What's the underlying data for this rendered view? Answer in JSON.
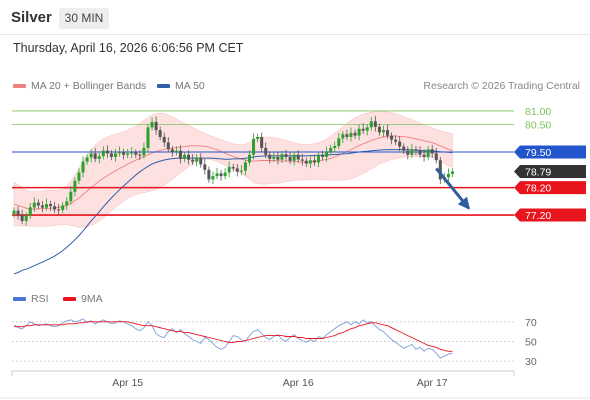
{
  "header": {
    "symbol": "Silver",
    "timeframe": "30 MIN",
    "datetime": "Thursday, April 16, 2026 6:06:56 PM CET",
    "copyright": "Research © 2026 Trading Central"
  },
  "legend": {
    "ma20_label": "MA 20 + Bollinger Bands",
    "ma50_label": "MA 50",
    "rsi_label": "RSI",
    "rsi_ma_label": "9MA"
  },
  "colors": {
    "bb_fill": "#fde1e1",
    "ma20": "#f08080",
    "ma50": "#2e5fa8",
    "bull": "#2ca02c",
    "bear": "#555555",
    "resistance_green": "#7cc35a",
    "pivot_blue": "#2255cc",
    "support_red": "#e8141e",
    "current_price_bg": "#333333",
    "arrow": "#2f5c9e",
    "rsi_line": "#7b9fd9",
    "rsi_ma": "#e8141e"
  },
  "chart_data": [
    {
      "type": "candlestick",
      "title": "Silver 30 MIN",
      "ylim": [
        74.9,
        81.4
      ],
      "x_tick_labels": [
        {
          "label": "Apr 15",
          "bar": 28
        },
        {
          "label": "Apr 16",
          "bar": 70
        },
        {
          "label": "Apr 17",
          "bar": 103
        }
      ],
      "levels": [
        {
          "value": 81.0,
          "label": "81.00",
          "kind": "resistance"
        },
        {
          "value": 80.5,
          "label": "80.50",
          "kind": "resistance"
        },
        {
          "value": 79.5,
          "label": "79.50",
          "kind": "pivot"
        },
        {
          "value": 78.79,
          "label": "78.79",
          "kind": "last"
        },
        {
          "value": 78.2,
          "label": "78.20",
          "kind": "support"
        },
        {
          "value": 77.2,
          "label": "77.20",
          "kind": "target"
        }
      ],
      "arrow": {
        "from_bar": 104,
        "from_value": 78.9,
        "to_bar": 112,
        "to_value": 77.45
      },
      "close": [
        77.36,
        77.2,
        76.98,
        77.18,
        77.48,
        77.65,
        77.55,
        77.47,
        77.6,
        77.52,
        77.4,
        77.38,
        77.55,
        77.7,
        78.05,
        78.45,
        78.75,
        79.15,
        79.3,
        79.45,
        79.25,
        79.35,
        79.55,
        79.45,
        79.32,
        79.45,
        79.5,
        79.4,
        79.45,
        79.48,
        79.4,
        79.38,
        79.65,
        80.4,
        80.6,
        80.3,
        80.05,
        79.85,
        79.6,
        79.5,
        79.55,
        79.25,
        79.4,
        79.22,
        79.15,
        79.3,
        79.05,
        78.85,
        78.5,
        78.62,
        78.72,
        78.62,
        78.75,
        78.95,
        78.9,
        78.78,
        78.82,
        79.12,
        79.4,
        79.98,
        80.05,
        79.65,
        79.4,
        79.25,
        79.32,
        79.22,
        79.42,
        79.32,
        79.18,
        79.4,
        79.23,
        79.18,
        79.08,
        79.2,
        79.12,
        79.38,
        79.32,
        79.5,
        79.65,
        79.72,
        80.0,
        80.15,
        80.05,
        80.2,
        80.1,
        80.35,
        80.28,
        80.4,
        80.62,
        80.42,
        80.22,
        80.3,
        80.1,
        79.95,
        79.88,
        79.7,
        79.55,
        79.4,
        79.6,
        79.55,
        79.4,
        79.32,
        79.6,
        79.45,
        79.2,
        78.5,
        78.58,
        78.7,
        78.79
      ],
      "series": [
        {
          "name": "MA 50",
          "values": [
            75.05,
            75.1,
            75.18,
            75.22,
            75.28,
            75.35,
            75.42,
            75.48,
            75.55,
            75.62,
            75.7,
            75.8,
            75.9,
            76.02,
            76.15,
            76.3,
            76.45,
            76.62,
            76.8,
            76.98,
            77.15,
            77.32,
            77.5,
            77.66,
            77.82,
            77.98,
            78.12,
            78.26,
            78.4,
            78.53,
            78.66,
            78.78,
            78.88,
            78.98,
            79.06,
            79.12,
            79.17,
            79.21,
            79.24,
            79.26,
            79.27,
            79.28,
            79.28,
            79.28,
            79.28,
            79.28,
            79.28,
            79.28,
            79.28,
            79.27,
            79.26,
            79.25,
            79.24,
            79.24,
            79.25,
            79.25,
            79.26,
            79.27,
            79.29,
            79.32,
            79.34,
            79.35,
            79.36,
            79.36,
            79.36,
            79.36,
            79.36,
            79.36,
            79.36,
            79.36,
            79.36,
            79.36,
            79.36,
            79.37,
            79.37,
            79.38,
            79.38,
            79.39,
            79.4,
            79.41,
            79.42,
            79.43,
            79.44,
            79.46,
            79.48,
            79.5,
            79.52,
            79.53,
            79.55,
            79.56,
            79.57,
            79.58,
            79.58,
            79.59,
            79.59,
            79.59,
            79.59,
            79.58,
            79.58,
            79.57,
            79.56,
            79.55,
            79.55,
            79.54,
            79.53,
            79.51,
            79.5,
            79.49,
            79.48
          ]
        },
        {
          "name": "MA 20",
          "values": [
            77.6,
            77.55,
            77.5,
            77.45,
            77.42,
            77.42,
            77.42,
            77.43,
            77.44,
            77.45,
            77.46,
            77.47,
            77.5,
            77.55,
            77.62,
            77.72,
            77.82,
            77.95,
            78.07,
            78.2,
            78.32,
            78.43,
            78.54,
            78.64,
            78.73,
            78.82,
            78.9,
            78.98,
            79.06,
            79.13,
            79.2,
            79.27,
            79.33,
            79.4,
            79.47,
            79.52,
            79.56,
            79.6,
            79.62,
            79.64,
            79.66,
            79.68,
            79.7,
            79.72,
            79.73,
            79.73,
            79.72,
            79.71,
            79.68,
            79.63,
            79.58,
            79.52,
            79.46,
            79.4,
            79.34,
            79.29,
            79.24,
            79.2,
            79.18,
            79.17,
            79.18,
            79.19,
            79.19,
            79.19,
            79.19,
            79.18,
            79.17,
            79.17,
            79.16,
            79.15,
            79.14,
            79.13,
            79.13,
            79.14,
            79.15,
            79.17,
            79.2,
            79.23,
            79.27,
            79.32,
            79.38,
            79.45,
            79.52,
            79.59,
            79.66,
            79.73,
            79.8,
            79.86,
            79.92,
            79.97,
            80.02,
            80.05,
            80.07,
            80.08,
            80.08,
            80.07,
            80.06,
            80.04,
            80.01,
            79.98,
            79.95,
            79.91,
            79.88,
            79.84,
            79.79,
            79.72,
            79.66,
            79.6,
            79.55
          ]
        },
        {
          "name": "Bollinger Upper",
          "values": [
            78.4,
            78.3,
            78.2,
            78.1,
            78.05,
            78.05,
            78.05,
            78.08,
            78.1,
            78.1,
            78.1,
            78.1,
            78.15,
            78.25,
            78.42,
            78.65,
            78.9,
            79.15,
            79.38,
            79.58,
            79.75,
            79.88,
            79.98,
            80.05,
            80.1,
            80.15,
            80.2,
            80.25,
            80.3,
            80.38,
            80.45,
            80.55,
            80.65,
            80.75,
            80.85,
            80.9,
            80.92,
            80.9,
            80.85,
            80.78,
            80.7,
            80.62,
            80.55,
            80.48,
            80.4,
            80.32,
            80.25,
            80.18,
            80.12,
            80.06,
            80.0,
            79.95,
            79.9,
            79.85,
            79.8,
            79.78,
            79.76,
            79.78,
            79.85,
            79.95,
            80.02,
            80.05,
            80.05,
            80.04,
            80.02,
            80.0,
            79.96,
            79.92,
            79.88,
            79.84,
            79.8,
            79.78,
            79.77,
            79.78,
            79.8,
            79.84,
            79.9,
            79.98,
            80.07,
            80.18,
            80.3,
            80.42,
            80.55,
            80.66,
            80.75,
            80.82,
            80.88,
            80.92,
            80.95,
            80.97,
            80.98,
            80.98,
            80.96,
            80.94,
            80.9,
            80.85,
            80.8,
            80.74,
            80.68,
            80.62,
            80.56,
            80.5,
            80.44,
            80.38,
            80.32,
            80.28,
            80.24,
            80.2,
            80.16
          ]
        },
        {
          "name": "Bollinger Lower",
          "values": [
            76.8,
            76.8,
            76.8,
            76.8,
            76.79,
            76.79,
            76.79,
            76.78,
            76.78,
            76.8,
            76.82,
            76.84,
            76.85,
            76.85,
            76.82,
            76.79,
            76.74,
            76.75,
            76.76,
            76.82,
            76.89,
            76.98,
            77.1,
            77.23,
            77.36,
            77.49,
            77.6,
            77.71,
            77.82,
            77.88,
            77.95,
            77.99,
            78.01,
            78.05,
            78.09,
            78.14,
            78.2,
            78.3,
            78.39,
            78.5,
            78.62,
            78.74,
            78.85,
            78.96,
            79.06,
            79.14,
            79.19,
            79.24,
            79.24,
            79.2,
            79.16,
            79.09,
            79.02,
            78.95,
            78.88,
            78.8,
            78.72,
            78.62,
            78.51,
            78.39,
            78.34,
            78.33,
            78.33,
            78.34,
            78.36,
            78.36,
            78.38,
            78.42,
            78.44,
            78.46,
            78.48,
            78.48,
            78.49,
            78.5,
            78.5,
            78.5,
            78.5,
            78.48,
            78.47,
            78.46,
            78.46,
            78.48,
            78.49,
            78.52,
            78.57,
            78.64,
            78.72,
            78.8,
            78.89,
            78.97,
            79.06,
            79.12,
            79.18,
            79.22,
            79.26,
            79.29,
            79.32,
            79.34,
            79.34,
            79.34,
            79.34,
            79.32,
            79.32,
            79.3,
            79.26,
            79.16,
            79.08,
            79.0,
            78.94
          ]
        }
      ]
    },
    {
      "type": "line",
      "title": "RSI",
      "ylim": [
        25,
        80
      ],
      "yticks": [
        30,
        50,
        70
      ],
      "series": [
        {
          "name": "RSI",
          "values": [
            67,
            64,
            63,
            66,
            70,
            68,
            66,
            67,
            68,
            66,
            65,
            66,
            69,
            71,
            72,
            70,
            71,
            73,
            69,
            71,
            68,
            70,
            72,
            70,
            68,
            69,
            71,
            70,
            68,
            66,
            63,
            61,
            64,
            70,
            66,
            58,
            55,
            54,
            60,
            63,
            59,
            62,
            58,
            55,
            52,
            50,
            48,
            54,
            52,
            48,
            44,
            42,
            44,
            50,
            56,
            55,
            52,
            50,
            56,
            60,
            62,
            58,
            54,
            52,
            55,
            57,
            52,
            50,
            54,
            57,
            53,
            51,
            49,
            52,
            50,
            55,
            53,
            57,
            60,
            63,
            66,
            68,
            70,
            67,
            70,
            68,
            72,
            69,
            70,
            66,
            62,
            60,
            56,
            52,
            49,
            46,
            43,
            45,
            47,
            42,
            44,
            40,
            43,
            42,
            38,
            33,
            35,
            37,
            38
          ]
        },
        {
          "name": "9MA",
          "values": [
            65,
            65,
            65,
            66,
            66,
            67,
            67,
            67,
            67,
            67,
            67,
            67,
            67,
            68,
            68,
            68,
            69,
            69,
            70,
            70,
            70,
            70,
            70,
            70,
            70,
            70,
            70,
            70,
            70,
            69,
            68,
            67,
            66,
            66,
            66,
            65,
            64,
            63,
            62,
            61,
            60,
            60,
            59,
            59,
            58,
            57,
            56,
            55,
            54,
            53,
            52,
            51,
            50,
            49,
            49,
            50,
            50,
            51,
            52,
            53,
            54,
            55,
            56,
            56,
            56,
            56,
            56,
            55,
            55,
            55,
            54,
            54,
            53,
            53,
            53,
            53,
            53,
            54,
            55,
            56,
            58,
            59,
            61,
            63,
            64,
            66,
            67,
            68,
            69,
            69,
            68,
            67,
            66,
            64,
            62,
            60,
            58,
            56,
            54,
            52,
            50,
            48,
            46,
            45,
            44,
            42,
            41,
            40,
            40
          ]
        }
      ]
    }
  ]
}
